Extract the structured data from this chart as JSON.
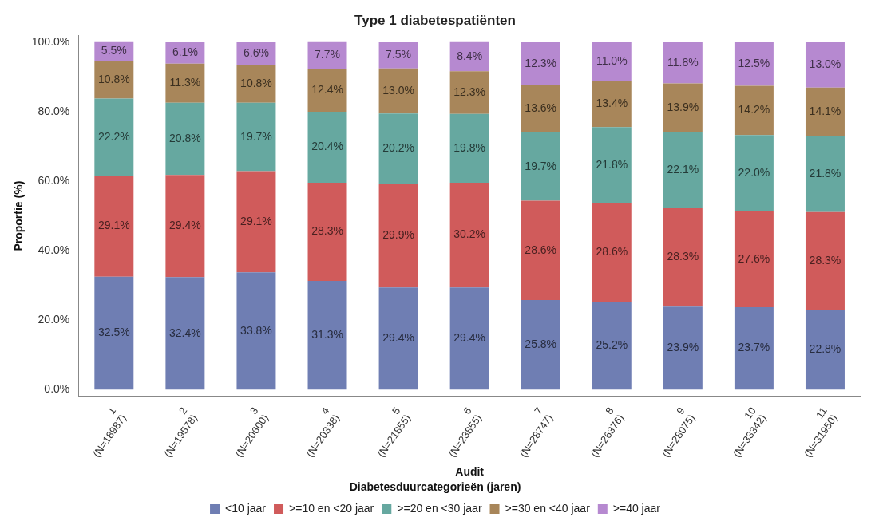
{
  "chart_data": {
    "type": "bar",
    "stacked": true,
    "title": "Type 1 diabetespatiënten",
    "xlabel": "Audit",
    "ylabel": "Proportie (%)",
    "legend_title": "Diabetesduurcategorieën (jaren)",
    "legend": "bottom",
    "grid": false,
    "categories": [
      "1\n(N=18987)",
      "2\n(N=19578)",
      "3\n(N=20600)",
      "4\n(N=20338)",
      "5\n(N=21855)",
      "6\n(N=23855)",
      "7\n(N=28747)",
      "8\n(N=26376)",
      "9\n(N=28075)",
      "10\n(N=33342)",
      "11\n(N=31950)"
    ],
    "ylim": [
      -2,
      102
    ],
    "yticks": [
      {
        "value": 0,
        "label": "0.0%"
      },
      {
        "value": 20,
        "label": "20.0%"
      },
      {
        "value": 40,
        "label": "40.0%"
      },
      {
        "value": 60,
        "label": "60.0%"
      },
      {
        "value": 80,
        "label": "80.0%"
      },
      {
        "value": 100,
        "label": "100.0%"
      }
    ],
    "series": [
      {
        "name": "<10 jaar",
        "color": "#6f7eb3",
        "values": [
          32.5,
          32.4,
          33.8,
          31.3,
          29.4,
          29.4,
          25.8,
          25.2,
          23.9,
          23.7,
          22.8
        ],
        "value_labels": [
          "32.5%",
          "32.4%",
          "33.8%",
          "31.3%",
          "29.4%",
          "29.4%",
          "25.8%",
          "25.2%",
          "23.9%",
          "23.7%",
          "22.8%"
        ]
      },
      {
        "name": ">=10 en <20 jaar",
        "color": "#d05b5b",
        "values": [
          29.1,
          29.4,
          29.1,
          28.3,
          29.9,
          30.2,
          28.6,
          28.6,
          28.3,
          27.6,
          28.3
        ],
        "value_labels": [
          "29.1%",
          "29.4%",
          "29.1%",
          "28.3%",
          "29.9%",
          "30.2%",
          "28.6%",
          "28.6%",
          "28.3%",
          "27.6%",
          "28.3%"
        ]
      },
      {
        "name": ">=20 en <30 jaar",
        "color": "#66a8a0",
        "values": [
          22.2,
          20.8,
          19.7,
          20.4,
          20.2,
          19.8,
          19.7,
          21.8,
          22.1,
          22.0,
          21.8
        ],
        "value_labels": [
          "22.2%",
          "20.8%",
          "19.7%",
          "20.4%",
          "20.2%",
          "19.8%",
          "19.7%",
          "21.8%",
          "22.1%",
          "22.0%",
          "21.8%"
        ]
      },
      {
        "name": ">=30 en <40 jaar",
        "color": "#a8865a",
        "values": [
          10.8,
          11.3,
          10.8,
          12.4,
          13.0,
          12.3,
          13.6,
          13.4,
          13.9,
          14.2,
          14.1
        ],
        "value_labels": [
          "10.8%",
          "11.3%",
          "10.8%",
          "12.4%",
          "13.0%",
          "12.3%",
          "13.6%",
          "13.4%",
          "13.9%",
          "14.2%",
          "14.1%"
        ]
      },
      {
        "name": ">=40 jaar",
        "color": "#b689d0",
        "values": [
          5.5,
          6.1,
          6.6,
          7.7,
          7.5,
          8.4,
          12.3,
          11.0,
          11.8,
          12.5,
          13.0
        ],
        "value_labels": [
          "5.5%",
          "6.1%",
          "6.6%",
          "7.7%",
          "7.5%",
          "8.4%",
          "12.3%",
          "11.0%",
          "11.8%",
          "12.5%",
          "13.0%"
        ]
      }
    ]
  }
}
